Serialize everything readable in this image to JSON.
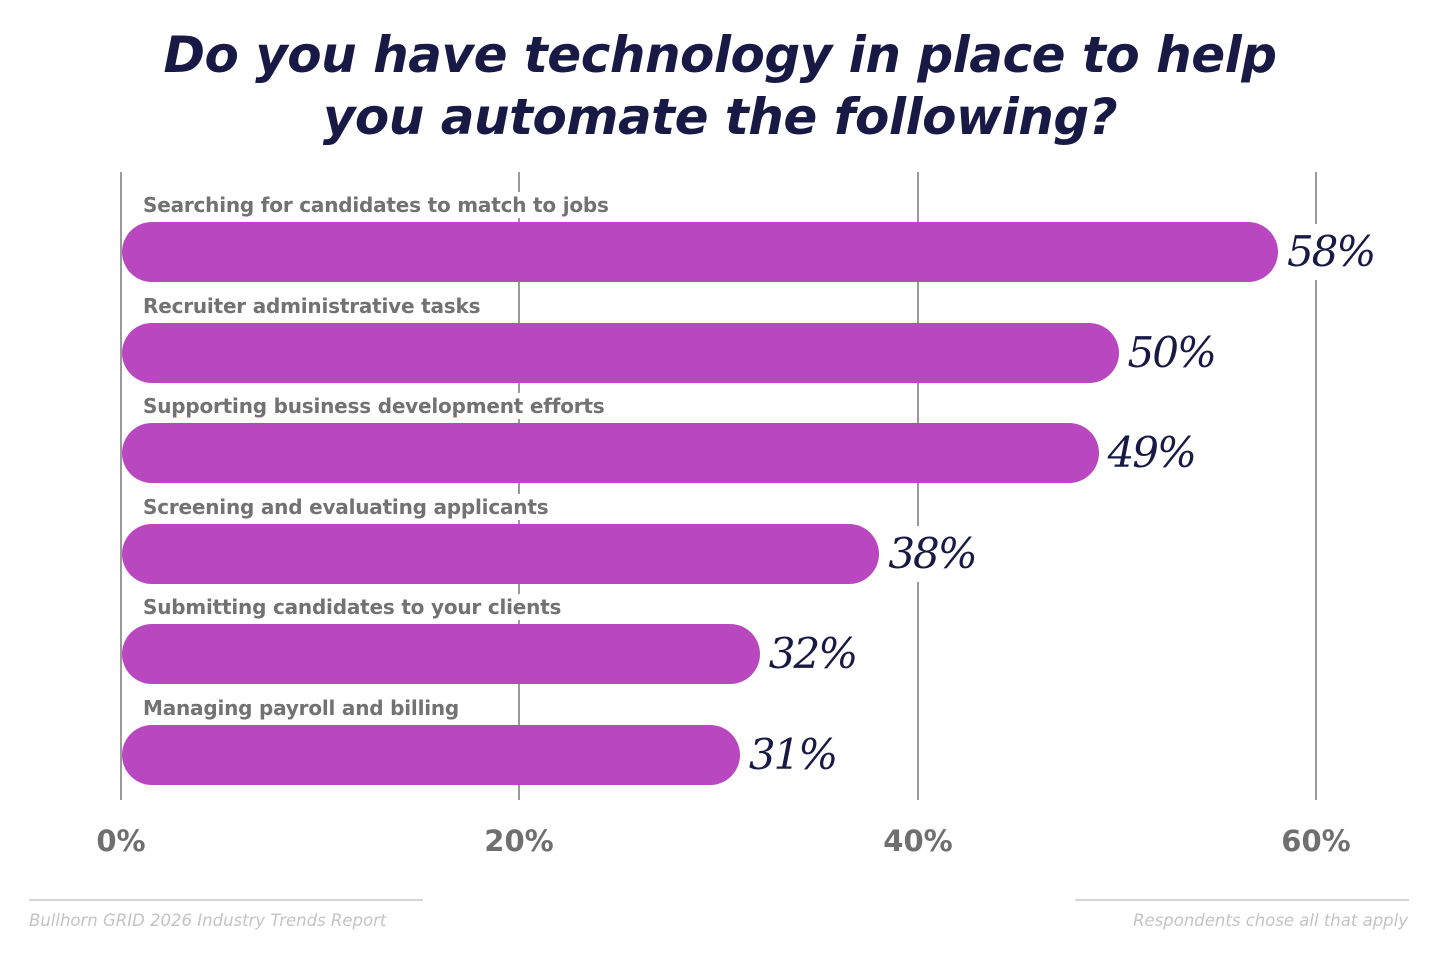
{
  "title": {
    "line1": "Do you have technology in place to help",
    "line2": "you automate the following?"
  },
  "axis": {
    "ticks": [
      "0%",
      "20%",
      "40%",
      "60%"
    ]
  },
  "footer": {
    "source": "Bullhorn GRID 2026 Industry Trends Report",
    "note": "Respondents chose all that apply"
  },
  "colors": {
    "bar": "#b847c0",
    "title": "#181a45",
    "value_label": "#181a45",
    "category_label": "#727272",
    "axis_label": "#6f6f6f",
    "gridline": "#9a9a9a"
  },
  "bars": [
    {
      "label": "Searching for candidates to match to jobs",
      "value": 58,
      "display": "58%"
    },
    {
      "label": "Recruiter administrative tasks",
      "value": 50,
      "display": "50%"
    },
    {
      "label": "Supporting business development efforts",
      "value": 49,
      "display": "49%"
    },
    {
      "label": "Screening and evaluating applicants",
      "value": 38,
      "display": "38%"
    },
    {
      "label": "Submitting candidates to your clients",
      "value": 32,
      "display": "32%"
    },
    {
      "label": "Managing payroll and billing",
      "value": 31,
      "display": "31%"
    }
  ],
  "chart_data": {
    "type": "bar",
    "orientation": "horizontal",
    "title": "Do you have technology in place to help you automate the following?",
    "categories": [
      "Searching for candidates to match to jobs",
      "Recruiter administrative tasks",
      "Supporting business development efforts",
      "Screening and evaluating applicants",
      "Submitting candidates to your clients",
      "Managing payroll and billing"
    ],
    "values": [
      58,
      50,
      49,
      38,
      32,
      31
    ],
    "value_labels": [
      "58%",
      "50%",
      "49%",
      "38%",
      "32%",
      "31%"
    ],
    "xlabel": "",
    "ylabel": "",
    "xlim": [
      0,
      60
    ],
    "xticks": [
      "0%",
      "20%",
      "40%",
      "60%"
    ],
    "grid": true,
    "legend": null,
    "annotations": [
      "Bullhorn GRID 2026 Industry Trends Report",
      "Respondents chose all that apply"
    ]
  }
}
